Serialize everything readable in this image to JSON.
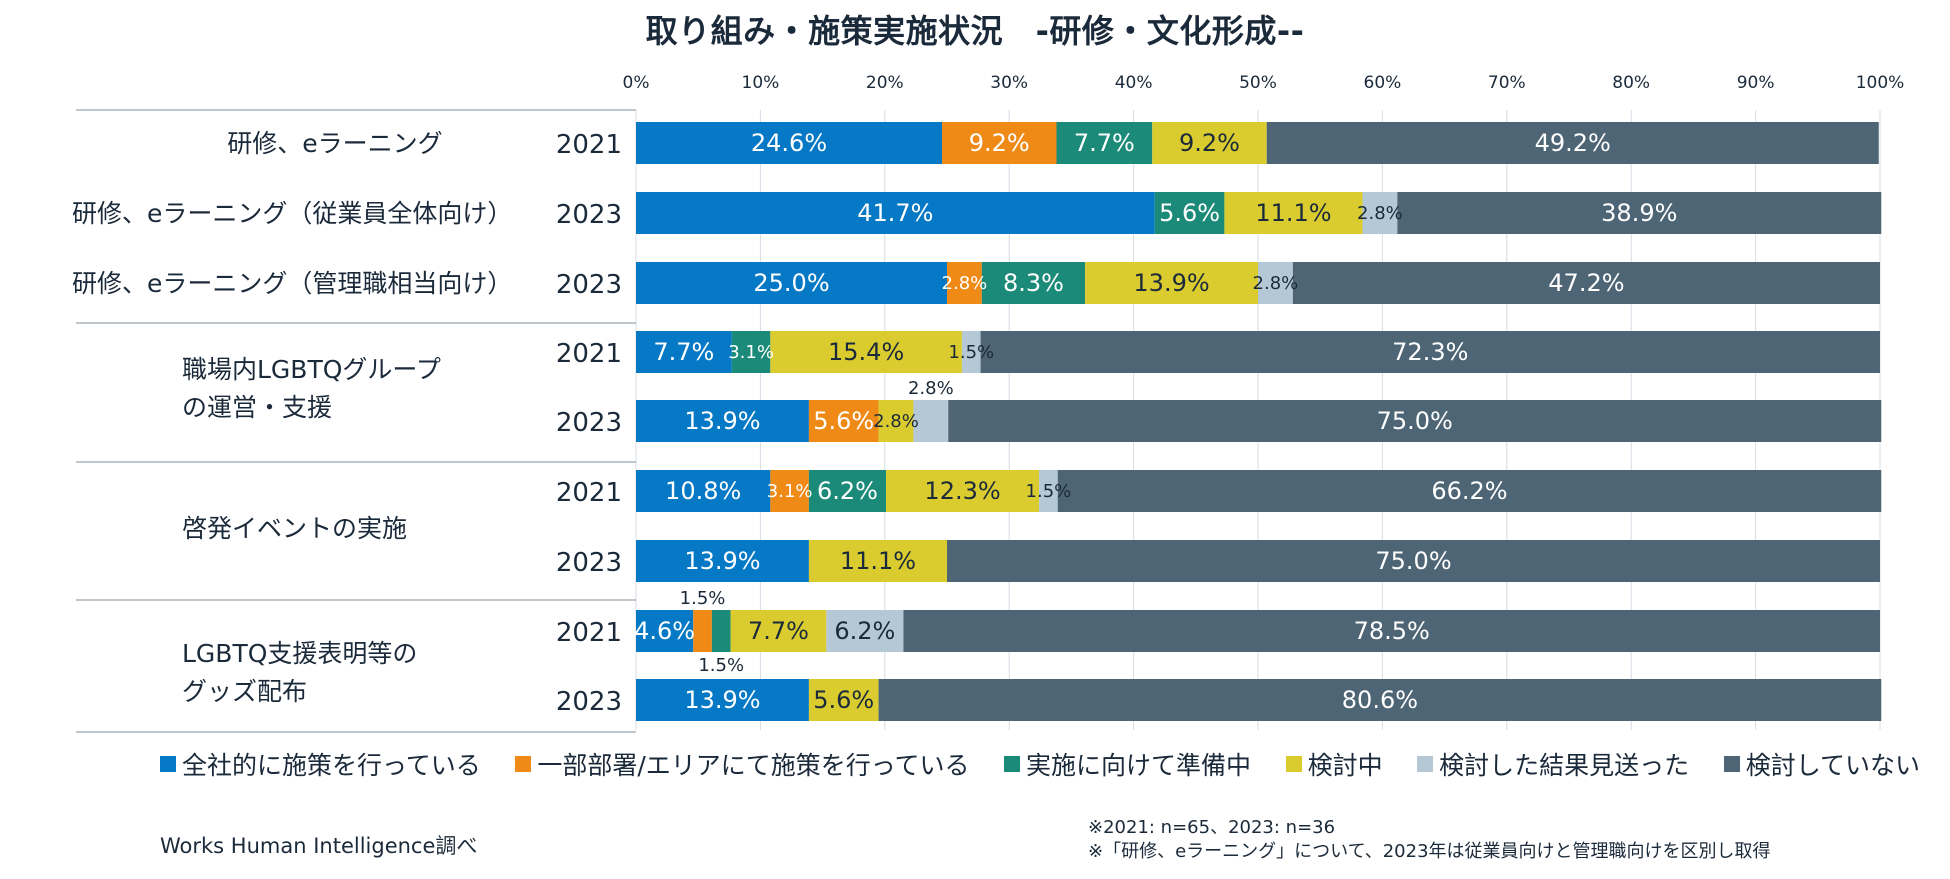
{
  "chart_data": {
    "type": "bar",
    "orientation": "horizontal",
    "stacked": "100%",
    "title": "取り組み・施策実施状況　-研修・文化形成--",
    "xlabel": "",
    "ylabel": "",
    "xlim": [
      0,
      100
    ],
    "x_ticks": [
      "0%",
      "10%",
      "20%",
      "30%",
      "40%",
      "50%",
      "60%",
      "70%",
      "80%",
      "90%",
      "100%"
    ],
    "grid": true,
    "legend_position": "bottom",
    "colors": [
      "#0579c5",
      "#ef8a17",
      "#1b8a78",
      "#dacc2f",
      "#b4c8d6",
      "#4e6575"
    ],
    "series_names": [
      "全社的に施策を行っている",
      "一部部署/エリアにて施策を行っている",
      "実施に向けて準備中",
      "検討中",
      "検討した結果見送った",
      "検討していない"
    ],
    "groups": [
      {
        "label": "研修、eラーニング",
        "rows": [
          0
        ]
      },
      {
        "label": "研修、eラーニング（従業員全体向け）",
        "rows": [
          1
        ]
      },
      {
        "label": "研修、eラーニング（管理職相当向け）",
        "rows": [
          2
        ]
      },
      {
        "label_lines": [
          "職場内LGBTQグループ",
          "の運営・支援"
        ],
        "rows": [
          3,
          4
        ]
      },
      {
        "label_lines": [
          "啓発イベントの実施"
        ],
        "rows": [
          5,
          6
        ]
      },
      {
        "label_lines": [
          "LGBTQ支援表明等の",
          "グッズ配布"
        ],
        "rows": [
          7,
          8
        ]
      }
    ],
    "rows": [
      {
        "year": "2021",
        "values": [
          24.6,
          9.2,
          7.7,
          9.2,
          0,
          49.2
        ]
      },
      {
        "year": "2023",
        "values": [
          41.7,
          0,
          5.6,
          11.1,
          2.8,
          38.9
        ]
      },
      {
        "year": "2023",
        "values": [
          25.0,
          2.8,
          8.3,
          13.9,
          2.8,
          47.2
        ]
      },
      {
        "year": "2021",
        "values": [
          7.7,
          0,
          3.1,
          15.4,
          1.5,
          72.3
        ]
      },
      {
        "year": "2023",
        "values": [
          13.9,
          5.6,
          0,
          2.8,
          2.8,
          75.0
        ]
      },
      {
        "year": "2021",
        "values": [
          10.8,
          3.1,
          6.2,
          12.3,
          1.5,
          66.2
        ]
      },
      {
        "year": "2023",
        "values": [
          13.9,
          0,
          0,
          11.1,
          0,
          75.0
        ]
      },
      {
        "year": "2021",
        "values": [
          4.6,
          1.5,
          1.5,
          7.7,
          6.2,
          78.5
        ]
      },
      {
        "year": "2023",
        "values": [
          13.9,
          0,
          0,
          5.6,
          0,
          80.6
        ]
      }
    ],
    "outside_labels": [
      {
        "row": 4,
        "series": 4,
        "text": "2.8%",
        "position": "above"
      },
      {
        "row": 7,
        "series": 1,
        "text": "1.5%",
        "position": "above"
      },
      {
        "row": 7,
        "series": 2,
        "text": "1.5%",
        "position": "below"
      }
    ]
  },
  "source": "Works Human Intelligence調べ",
  "notes": [
    "※2021: n=65、2023: n=36",
    "※「研修、eラーニング」について、2023年は従業員向けと管理職向けを区別し取得"
  ]
}
